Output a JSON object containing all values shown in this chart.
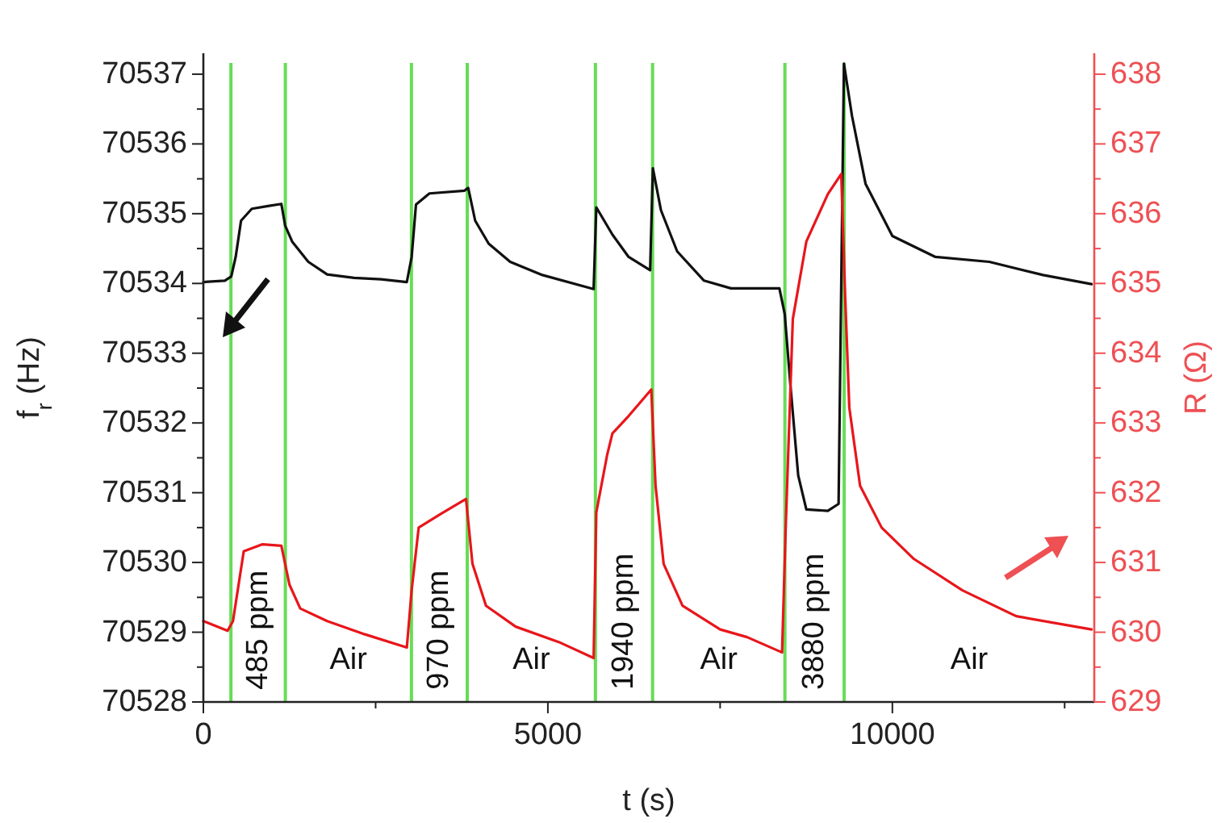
{
  "chart_data": {
    "type": "line",
    "xlabel": "t (s)",
    "ylabel": "f$_{r}$ (Hz)",
    "y2label": "R (Ω)",
    "xlim": [
      0,
      12930
    ],
    "xticks": [
      0,
      {
        "value": 2500,
        "label": null
      },
      5000,
      {
        "value": 7500,
        "label": null
      },
      10000,
      {
        "value": 12500,
        "label": null
      }
    ],
    "ylim": [
      70528,
      70537.3
    ],
    "yticks": [
      70528,
      {
        "value": 70528.5,
        "label": null
      },
      70529,
      {
        "value": 70529.5,
        "label": null
      },
      70530,
      {
        "value": 70530.5,
        "label": null
      },
      70531,
      {
        "value": 70531.5,
        "label": null
      },
      70532,
      {
        "value": 70532.5,
        "label": null
      },
      70533,
      {
        "value": 70533.5,
        "label": null
      },
      70534,
      {
        "value": 70534.5,
        "label": null
      },
      70535,
      {
        "value": 70535.5,
        "label": null
      },
      70536,
      {
        "value": 70536.5,
        "label": null
      },
      70537
    ],
    "y2lim": [
      629,
      638.3
    ],
    "y2ticks": [
      629,
      {
        "value": 629.5,
        "label": null
      },
      630,
      {
        "value": 630.5,
        "label": null
      },
      631,
      {
        "value": 631.5,
        "label": null
      },
      632,
      {
        "value": 632.5,
        "label": null
      },
      633,
      {
        "value": 633.5,
        "label": null
      },
      634,
      {
        "value": 634.5,
        "label": null
      },
      635,
      {
        "value": 635.5,
        "label": null
      },
      636,
      {
        "value": 636.5,
        "label": null
      },
      637,
      {
        "value": 637.5,
        "label": null
      },
      638
    ],
    "marker": "none",
    "line_style": "solid",
    "series": [
      {
        "color": "#111111",
        "x": [
          0,
          312,
          405,
          469,
          547,
          703,
          937,
          1132,
          1187,
          1289,
          1523,
          1797,
          2187,
          2578,
          2953,
          3023,
          3086,
          3281,
          3789,
          3844,
          3945,
          4141,
          4453,
          4922,
          5664,
          5703,
          5937,
          6172,
          6484,
          6524,
          6641,
          6876,
          7266,
          7657,
          8360,
          8438,
          8516,
          8633,
          8751,
          9063,
          9219,
          9297,
          9414,
          9610,
          10000,
          10625,
          11407,
          12188,
          12891
        ],
        "values": [
          70534.02,
          70534.04,
          70534.1,
          70534.38,
          70534.9,
          70535.07,
          70535.11,
          70535.14,
          70534.83,
          70534.6,
          70534.31,
          70534.13,
          70534.08,
          70534.06,
          70534.02,
          70534.38,
          70535.13,
          70535.29,
          70535.33,
          70535.37,
          70534.9,
          70534.57,
          70534.31,
          70534.12,
          70533.92,
          70535.09,
          70534.7,
          70534.38,
          70534.19,
          70535.65,
          70535.05,
          70534.46,
          70534.04,
          70533.93,
          70533.93,
          70533.56,
          70532.59,
          70531.25,
          70530.76,
          70530.74,
          70530.84,
          70537.15,
          70536.4,
          70535.43,
          70534.68,
          70534.38,
          70534.31,
          70534.12,
          70533.99
        ]
      },
      {
        "color": "#e8161b",
        "axis": "y2",
        "x": [
          0,
          352,
          430,
          586,
          859,
          1132,
          1250,
          1406,
          1797,
          2344,
          2953,
          3023,
          3125,
          3437,
          3812,
          3906,
          4102,
          4532,
          5157,
          5664,
          5703,
          5860,
          5937,
          6172,
          6501,
          6563,
          6680,
          6954,
          7501,
          7891,
          8399,
          8454,
          8555,
          8751,
          9063,
          9258,
          9313,
          9375,
          9531,
          9844,
          10313,
          11016,
          11797,
          12891
        ],
        "values": [
          630.16,
          630.02,
          630.16,
          631.16,
          631.26,
          631.24,
          630.68,
          630.34,
          630.16,
          629.97,
          629.78,
          630.6,
          631.5,
          631.69,
          631.91,
          630.98,
          630.38,
          630.08,
          629.86,
          629.63,
          631.72,
          632.54,
          632.85,
          633.1,
          633.48,
          632.1,
          630.98,
          630.38,
          630.04,
          629.93,
          629.71,
          631.57,
          634.49,
          635.6,
          636.28,
          636.57,
          634.86,
          633.22,
          632.1,
          631.5,
          631.05,
          630.6,
          630.23,
          630.04
        ]
      }
    ],
    "ref_lines": [
      {
        "axis": "x",
        "value": 400,
        "color": "#66dd55"
      },
      {
        "axis": "x",
        "value": 1190,
        "color": "#66dd55"
      },
      {
        "axis": "x",
        "value": 3020,
        "color": "#66dd55"
      },
      {
        "axis": "x",
        "value": 3830,
        "color": "#66dd55"
      },
      {
        "axis": "x",
        "value": 5690,
        "color": "#66dd55"
      },
      {
        "axis": "x",
        "value": 6520,
        "color": "#66dd55"
      },
      {
        "axis": "x",
        "value": 8440,
        "color": "#66dd55"
      },
      {
        "axis": "x",
        "value": 9300,
        "color": "#66dd55"
      }
    ],
    "annotations": [
      "485 ppm",
      "Air",
      "970 ppm",
      "Air",
      "1940 ppm",
      "Air",
      "3880 ppm",
      "Air"
    ]
  }
}
